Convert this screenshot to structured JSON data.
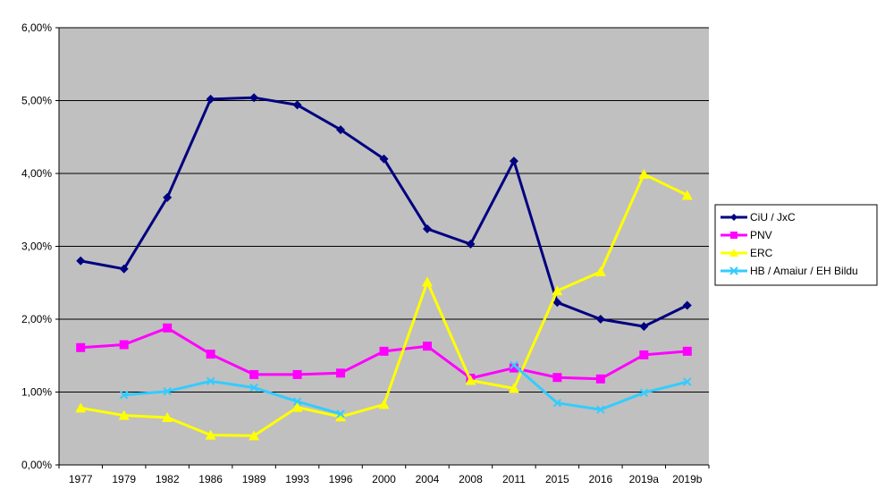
{
  "chart_data": {
    "type": "line",
    "categories": [
      "1977",
      "1979",
      "1982",
      "1986",
      "1989",
      "1993",
      "1996",
      "2000",
      "2004",
      "2008",
      "2011",
      "2015",
      "2016",
      "2019a",
      "2019b"
    ],
    "ylim": [
      0,
      6
    ],
    "y_ticks": [
      "0,00%",
      "1,00%",
      "2,00%",
      "3,00%",
      "4,00%",
      "5,00%",
      "6,00%"
    ],
    "grid": true,
    "legend_position": "right",
    "plot_background": "#c0c0c0",
    "series": [
      {
        "name": "CiU / JxC",
        "color": "#000080",
        "marker": "diamond",
        "values": [
          2.8,
          2.69,
          3.67,
          5.02,
          5.04,
          4.94,
          4.6,
          4.2,
          3.24,
          3.03,
          4.17,
          2.23,
          2.0,
          1.9,
          2.19
        ]
      },
      {
        "name": "PNV",
        "color": "#ff00ff",
        "marker": "square",
        "values": [
          1.61,
          1.65,
          1.88,
          1.52,
          1.24,
          1.24,
          1.26,
          1.56,
          1.63,
          1.19,
          1.33,
          1.2,
          1.18,
          1.51,
          1.56
        ]
      },
      {
        "name": "ERC",
        "color": "#ffff00",
        "marker": "triangle",
        "values": [
          0.78,
          0.68,
          0.65,
          0.41,
          0.4,
          0.79,
          0.66,
          0.83,
          2.51,
          1.16,
          1.05,
          2.39,
          2.65,
          3.99,
          3.7
        ]
      },
      {
        "name": "HB / Amaiur / EH Bildu",
        "color": "#33ccff",
        "marker": "x",
        "values": [
          null,
          0.96,
          1.01,
          1.15,
          1.06,
          0.87,
          0.7,
          null,
          null,
          null,
          1.37,
          0.85,
          0.76,
          0.99,
          1.14
        ]
      }
    ]
  }
}
